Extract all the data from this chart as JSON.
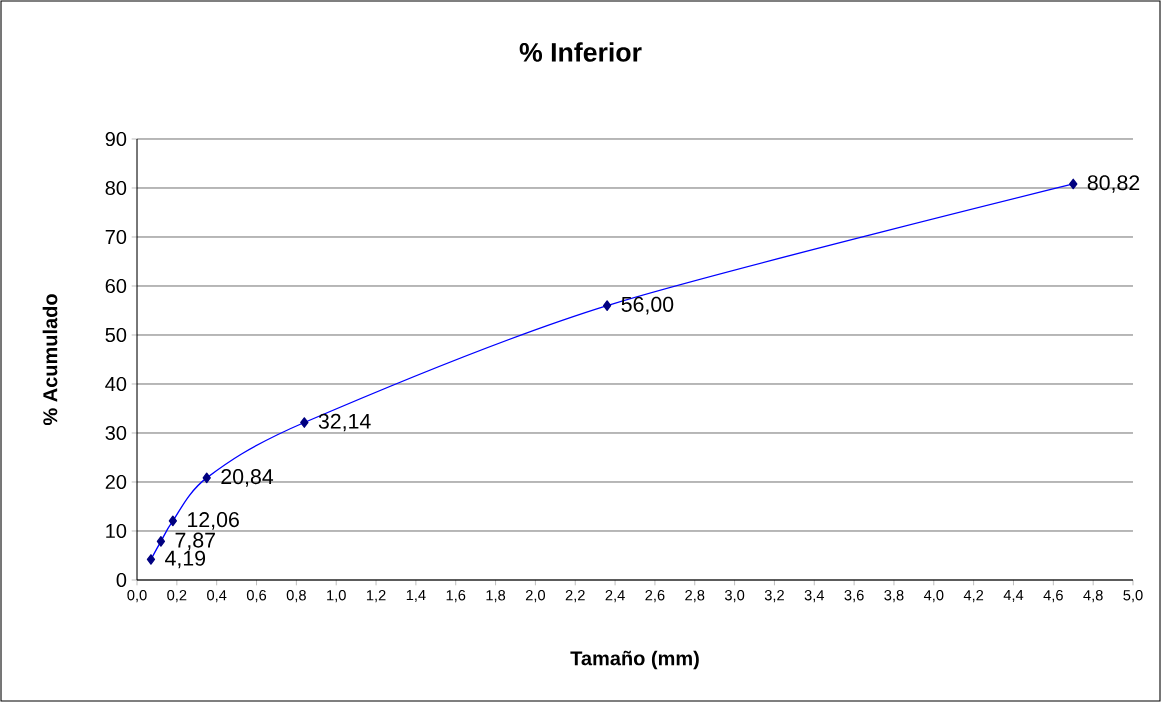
{
  "chart_data": {
    "type": "line",
    "title": "% Inferior",
    "xlabel": "Tamaño (mm)",
    "ylabel": "% Acumulado",
    "series": [
      {
        "color": "#0000ff",
        "x": [
          0.07,
          0.12,
          0.18,
          0.35,
          0.84,
          2.36,
          4.7
        ],
        "values": [
          4.19,
          7.87,
          12.06,
          20.84,
          32.14,
          56.0,
          80.82
        ],
        "value_labels": [
          "4,19",
          "7,87",
          "12,06",
          "20,84",
          "32,14",
          "56,00",
          "80,82"
        ]
      }
    ],
    "xlim": [
      0,
      5
    ],
    "xticks": [
      {
        "value": 0,
        "label": "0,0"
      },
      {
        "value": 0.2,
        "label": "0,2"
      },
      {
        "value": 0.4,
        "label": "0,4"
      },
      {
        "value": 0.6,
        "label": "0,6"
      },
      {
        "value": 0.8,
        "label": "0,8"
      },
      {
        "value": 1.0,
        "label": "1,0"
      },
      {
        "value": 1.2,
        "label": "1,2"
      },
      {
        "value": 1.4,
        "label": "1,4"
      },
      {
        "value": 1.6,
        "label": "1,6"
      },
      {
        "value": 1.8,
        "label": "1,8"
      },
      {
        "value": 2.0,
        "label": "2,0"
      },
      {
        "value": 2.2,
        "label": "2,2"
      },
      {
        "value": 2.4,
        "label": "2,4"
      },
      {
        "value": 2.6,
        "label": "2,6"
      },
      {
        "value": 2.8,
        "label": "2,8"
      },
      {
        "value": 3.0,
        "label": "3,0"
      },
      {
        "value": 3.2,
        "label": "3,2"
      },
      {
        "value": 3.4,
        "label": "3,4"
      },
      {
        "value": 3.6,
        "label": "3,6"
      },
      {
        "value": 3.8,
        "label": "3,8"
      },
      {
        "value": 4.0,
        "label": "4,0"
      },
      {
        "value": 4.2,
        "label": "4,2"
      },
      {
        "value": 4.4,
        "label": "4,4"
      },
      {
        "value": 4.6,
        "label": "4,6"
      },
      {
        "value": 4.8,
        "label": "4,8"
      },
      {
        "value": 5.0,
        "label": "5,0"
      }
    ],
    "ylim": [
      0,
      90
    ],
    "yticks": [
      0,
      10,
      20,
      30,
      40,
      50,
      60,
      70,
      80,
      90
    ],
    "grid": "y",
    "marker": "diamond",
    "line_style": "solid"
  }
}
